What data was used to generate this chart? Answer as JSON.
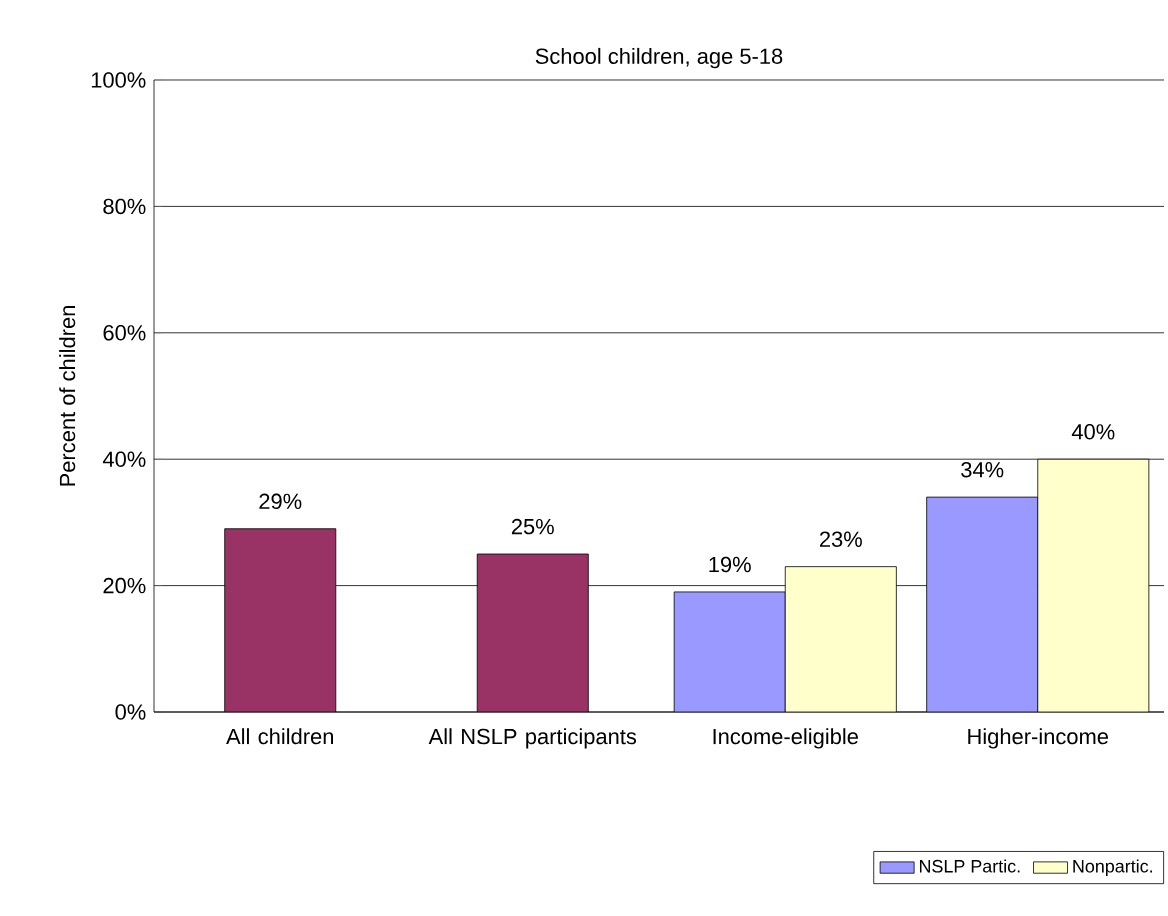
{
  "chart_data": {
    "type": "bar",
    "title": "School children, age 5-18",
    "ylabel": "Percent of children",
    "categories": [
      "All children",
      "All NSLP participants",
      "Income-eligible",
      "Higher-income"
    ],
    "series": [
      {
        "color": "#993366",
        "values": [
          29,
          25,
          null,
          null
        ],
        "value_labels": [
          "29%",
          "25%",
          null,
          null
        ]
      },
      {
        "name": "NSLP Partic.",
        "color": "#9999ff",
        "values": [
          null,
          null,
          19,
          34
        ],
        "value_labels": [
          null,
          null,
          "19%",
          "34%"
        ]
      },
      {
        "name": "Nonpartic.",
        "color": "#ffffcc",
        "values": [
          null,
          null,
          23,
          40
        ],
        "value_labels": [
          null,
          null,
          "23%",
          "40%"
        ]
      }
    ],
    "ylim": [
      0,
      100
    ],
    "yticks": [
      {
        "value": 0,
        "label": "0%"
      },
      {
        "value": 20,
        "label": "20%"
      },
      {
        "value": 40,
        "label": "40%"
      },
      {
        "value": 60,
        "label": "60%"
      },
      {
        "value": 80,
        "label": "80%"
      },
      {
        "value": 100,
        "label": "100%"
      }
    ],
    "grid": "y",
    "legend": "bottom right"
  }
}
